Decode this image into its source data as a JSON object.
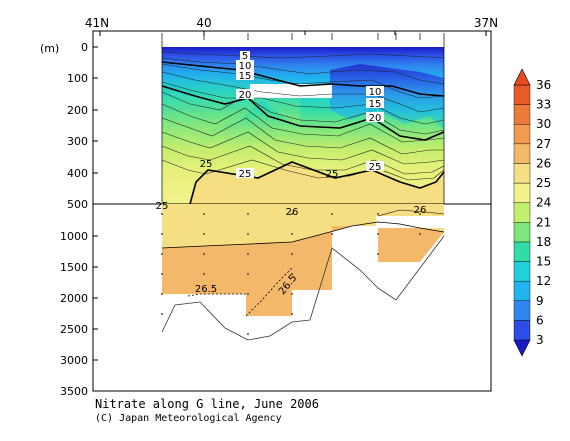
{
  "chart_data": {
    "type": "heatmap",
    "title": "Nitrate along G line, June 2006",
    "credit": "(C) Japan Meteorological Agency",
    "x_axis": {
      "labels": [
        "41N",
        "40",
        "37N"
      ]
    },
    "y_axis": {
      "unit_label": "(m)",
      "upper_ticks": [
        "0",
        "100",
        "200",
        "300",
        "400",
        "500"
      ],
      "lower_ticks": [
        "1000",
        "1500",
        "2000",
        "2500",
        "3000",
        "3500"
      ],
      "upper_range": [
        0,
        500
      ],
      "lower_range": [
        500,
        3500
      ],
      "split_depth": 500
    },
    "colorbar": {
      "levels": [
        "3",
        "6",
        "9",
        "12",
        "15",
        "18",
        "21",
        "24",
        "25",
        "26",
        "27",
        "30",
        "33",
        "36"
      ],
      "colors": [
        "#1a1ac8",
        "#2c4de6",
        "#2f86f0",
        "#20b4ee",
        "#24d0d8",
        "#30dca8",
        "#7fe67e",
        "#c4ee6e",
        "#f0f28c",
        "#f6de82",
        "#f4b86a",
        "#f09a52",
        "#ec7a3a",
        "#e85a28",
        "#e84a20"
      ]
    },
    "contour_labels": [
      {
        "text": "5"
      },
      {
        "text": "10"
      },
      {
        "text": "15"
      },
      {
        "text": "20"
      },
      {
        "text": "10"
      },
      {
        "text": "15"
      },
      {
        "text": "20"
      },
      {
        "text": "25"
      },
      {
        "text": "25"
      },
      {
        "text": "25"
      },
      {
        "text": "25"
      },
      {
        "text": "25"
      },
      {
        "text": "26"
      },
      {
        "text": "26"
      },
      {
        "text": "26.5"
      },
      {
        "text": "26.5"
      }
    ]
  }
}
